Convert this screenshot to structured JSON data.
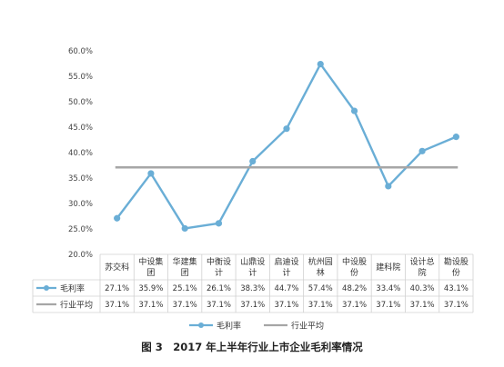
{
  "chart_data": {
    "type": "line",
    "title": "",
    "xlabel": "",
    "ylabel": "",
    "categories": [
      [
        "苏交科"
      ],
      [
        "中设集",
        "团"
      ],
      [
        "华建集",
        "团"
      ],
      [
        "中衡设",
        "计"
      ],
      [
        "山鼎设",
        "计"
      ],
      [
        "启迪设",
        "计"
      ],
      [
        "杭州园",
        "林"
      ],
      [
        "中设股",
        "份"
      ],
      [
        "建科院"
      ],
      [
        "设计总",
        "院"
      ],
      [
        "勘设股",
        "份"
      ]
    ],
    "series": [
      {
        "name": "毛利率",
        "color": "#6AAED6",
        "values": [
          27.1,
          35.9,
          25.1,
          26.1,
          38.3,
          44.7,
          57.4,
          48.2,
          33.4,
          40.3,
          43.1
        ],
        "labels": [
          "27.1%",
          "35.9%",
          "25.1%",
          "26.1%",
          "38.3%",
          "44.7%",
          "57.4%",
          "48.2%",
          "33.4%",
          "40.3%",
          "43.1%"
        ]
      },
      {
        "name": "行业平均",
        "color": "#A6A6A6",
        "values": [
          37.1,
          37.1,
          37.1,
          37.1,
          37.1,
          37.1,
          37.1,
          37.1,
          37.1,
          37.1,
          37.1
        ],
        "labels": [
          "37.1%",
          "37.1%",
          "37.1%",
          "37.1%",
          "37.1%",
          "37.1%",
          "37.1%",
          "37.1%",
          "37.1%",
          "37.1%",
          "37.1%"
        ]
      }
    ],
    "ylim": [
      20,
      60
    ],
    "yticks": [
      "60.0%",
      "55.0%",
      "50.0%",
      "45.0%",
      "40.0%",
      "35.0%",
      "30.0%",
      "25.0%",
      "20.0%"
    ],
    "grid": false,
    "legend_position": "bottom",
    "data_table": true
  },
  "caption": "图 3　2017 年上半年行业上市企业毛利率情况"
}
